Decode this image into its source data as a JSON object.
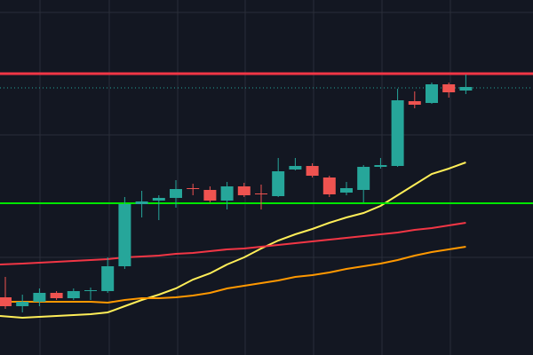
{
  "chart_data": {
    "type": "candlestick",
    "ylim": [
      0,
      400
    ],
    "up_color": "#26a69a",
    "down_color": "#ef5350",
    "open": [
      65,
      55,
      60,
      70,
      64,
      72,
      72,
      100,
      170,
      174,
      177,
      188,
      186,
      174,
      190,
      182,
      179,
      209,
      213,
      200,
      183,
      186,
      212,
      213,
      286,
      284,
      305,
      298
    ],
    "high": [
      88,
      68,
      75,
      72,
      75,
      76,
      110,
      178,
      185,
      180,
      197,
      193,
      190,
      195,
      194,
      192,
      222,
      222,
      216,
      202,
      195,
      214,
      222,
      300,
      297,
      307,
      307,
      316
    ],
    "low": [
      52,
      48,
      55,
      62,
      62,
      62,
      70,
      97,
      155,
      152,
      166,
      180,
      172,
      164,
      178,
      164,
      178,
      208,
      200,
      178,
      180,
      172,
      210,
      212,
      278,
      283,
      290,
      294
    ],
    "close": [
      55,
      60,
      70,
      64,
      72,
      73,
      100,
      170,
      173,
      177,
      187,
      187,
      174,
      190,
      180,
      181,
      207,
      213,
      202,
      181,
      188,
      212,
      214,
      287,
      282,
      305,
      296,
      302
    ],
    "lines": [
      {
        "color": "#ffee58",
        "values": [
          44,
          42,
          43,
          44,
          45,
          46,
          48,
          55,
          62,
          68,
          75,
          85,
          92,
          102,
          110,
          120,
          129,
          136,
          142,
          149,
          155,
          160,
          168,
          180,
          192,
          204,
          210,
          217
        ]
      },
      {
        "color": "#f23645",
        "values": [
          102,
          103,
          104,
          105,
          106,
          107,
          108,
          110,
          111,
          112,
          114,
          115,
          117,
          119,
          120,
          122,
          124,
          126,
          128,
          130,
          132,
          134,
          136,
          138,
          141,
          143,
          146,
          149
        ]
      },
      {
        "color": "#ff9800",
        "values": [
          60,
          60,
          60,
          60,
          60,
          60,
          59,
          62,
          64,
          64,
          65,
          67,
          70,
          75,
          78,
          81,
          84,
          88,
          90,
          93,
          97,
          100,
          103,
          107,
          112,
          116,
          119,
          122
        ]
      }
    ],
    "levels": [
      {
        "value": 317,
        "color": "#f23645",
        "style": "solid"
      },
      {
        "value": 301,
        "color": "#26a69a",
        "style": "dotted"
      },
      {
        "value": 171,
        "color": "#00e600",
        "style": "solid"
      }
    ]
  }
}
